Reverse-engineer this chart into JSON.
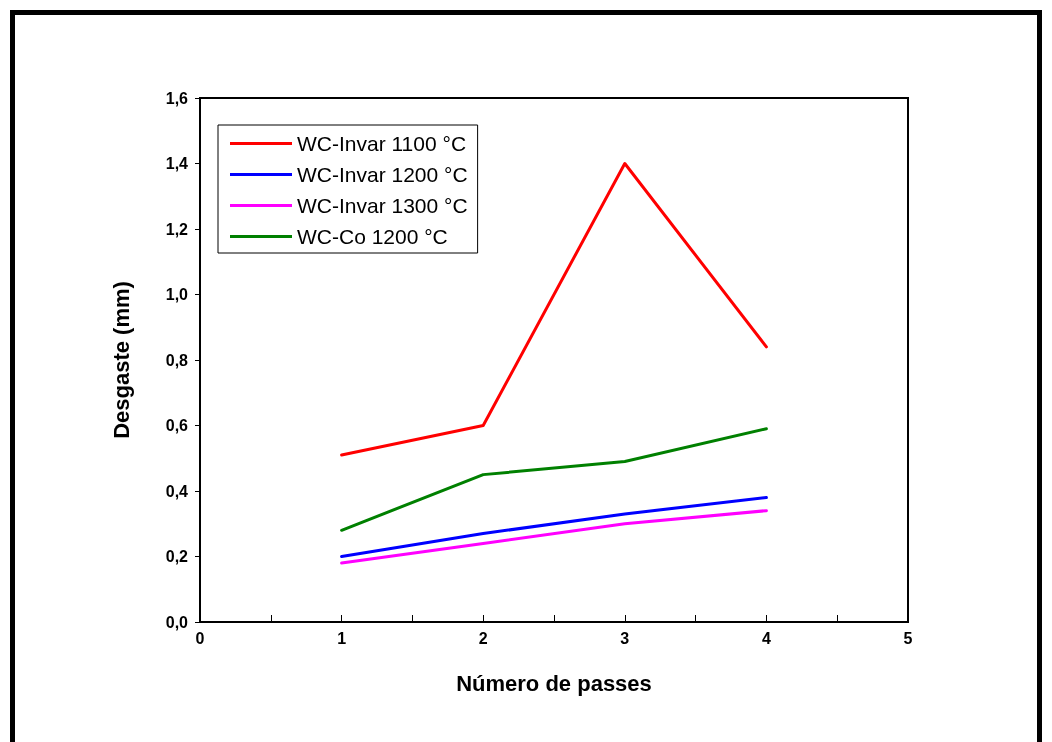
{
  "chart_data": {
    "type": "line",
    "xlabel": "Número de passes",
    "ylabel": "Desgaste (mm)",
    "x": [
      1,
      2,
      3,
      4
    ],
    "series": [
      {
        "name": "WC-Invar 1100 °C",
        "color": "#ff0000",
        "values": [
          0.51,
          0.6,
          1.4,
          0.84
        ]
      },
      {
        "name": "WC-Invar 1200 °C",
        "color": "#0000ff",
        "values": [
          0.2,
          0.27,
          0.33,
          0.38
        ]
      },
      {
        "name": "WC-Invar 1300 °C",
        "color": "#ff00ff",
        "values": [
          0.18,
          0.24,
          0.3,
          0.34
        ]
      },
      {
        "name": "WC-Co 1200 °C",
        "color": "#008000",
        "values": [
          0.28,
          0.45,
          0.49,
          0.59
        ]
      }
    ],
    "xlim": [
      0,
      5
    ],
    "xticks": [
      0,
      {
        "value": 0.5,
        "label": null
      },
      1,
      {
        "value": 1.5,
        "label": null
      },
      2,
      {
        "value": 2.5,
        "label": null
      },
      3,
      {
        "value": 3.5,
        "label": null
      },
      4,
      {
        "value": 4.5,
        "label": null
      },
      5
    ],
    "ylim": [
      0,
      1.6
    ],
    "yticks": [
      {
        "value": 0,
        "label": "0,0"
      },
      {
        "value": 0.2,
        "label": "0,2"
      },
      {
        "value": 0.4,
        "label": "0,4"
      },
      {
        "value": 0.6,
        "label": "0,6"
      },
      {
        "value": 0.8,
        "label": "0,8"
      },
      {
        "value": 1.0,
        "label": "1,0"
      },
      {
        "value": 1.2,
        "label": "1,2"
      },
      {
        "value": 1.4,
        "label": "1,4"
      },
      {
        "value": 1.6,
        "label": "1,6"
      }
    ],
    "grid": false,
    "legend": "top left",
    "marker": "none",
    "line_style": "solid"
  }
}
